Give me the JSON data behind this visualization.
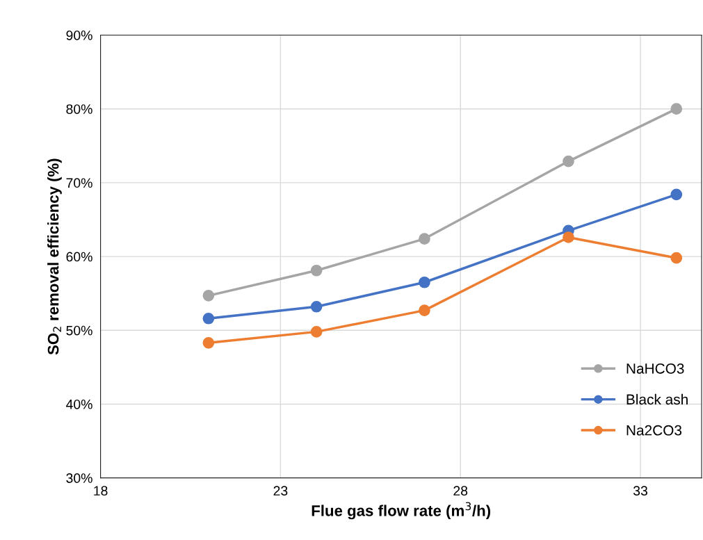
{
  "chart_data": {
    "type": "line",
    "xlabel": "Flue gas flow rate (m$^{3}$/h)",
    "ylabel": "SO$_{2}$ removal efficiency (%)",
    "x": [
      21,
      24,
      27,
      31,
      34
    ],
    "series": [
      {
        "name": "NaHCO3",
        "color": "#a5a5a5",
        "values": [
          54.7,
          58.1,
          62.4,
          72.9,
          80.0
        ]
      },
      {
        "name": "Black ash",
        "color": "#4472c4",
        "values": [
          51.6,
          53.2,
          56.5,
          63.5,
          68.4
        ]
      },
      {
        "name": "Na2CO3",
        "color": "#ed7d31",
        "values": [
          48.3,
          49.8,
          52.7,
          62.6,
          59.8
        ]
      }
    ],
    "xlim": [
      18,
      34.7
    ],
    "xticks": [
      18,
      23,
      28,
      33
    ],
    "ylim": [
      30,
      90
    ],
    "yticks": [
      {
        "value": 30,
        "label": "30%"
      },
      {
        "value": 40,
        "label": "40%"
      },
      {
        "value": 50,
        "label": "50%"
      },
      {
        "value": 60,
        "label": "60%"
      },
      {
        "value": 70,
        "label": "70%"
      },
      {
        "value": 80,
        "label": "80%"
      },
      {
        "value": 90,
        "label": "90%"
      }
    ],
    "grid": true,
    "legend": "bottom right",
    "marker": "circle",
    "line_style": "solid"
  }
}
